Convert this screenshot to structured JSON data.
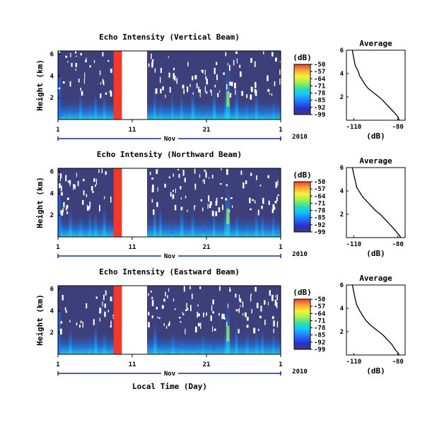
{
  "figure": {
    "xlabel": "Local Time (Day)",
    "month_label": "Nov",
    "year_label": "2010"
  },
  "chart_data": [
    {
      "type": "heatmap",
      "title": "Echo Intensity (Vertical Beam)",
      "ylabel": "Height (km)",
      "x_ticks": [
        "1",
        "11",
        "21",
        "1"
      ],
      "y_ticks": [
        "6",
        "4",
        "2"
      ],
      "colorbar": {
        "label": "(dB)",
        "ticks": [
          -50,
          -57,
          -64,
          -71,
          -78,
          -85,
          -92,
          -99
        ],
        "range": [
          -99,
          -50
        ]
      },
      "data_gap_days": [
        8.6,
        12.0
      ],
      "red_band_days": [
        7.5,
        8.6
      ],
      "profile": {
        "title": "Average",
        "xlabel": "(dB)",
        "x_ticks": [
          "-110",
          "-80"
        ],
        "y_ticks": [
          "6",
          "4",
          "2"
        ],
        "xlim": [
          -115,
          -75
        ],
        "ylim": [
          0,
          6
        ],
        "x": [
          -111,
          -110,
          -109,
          -107,
          -106,
          -104,
          -102,
          -100,
          -97,
          -94,
          -91,
          -88,
          -85,
          -82,
          -80,
          -79
        ],
        "y": [
          6.0,
          5.3,
          4.7,
          4.2,
          3.8,
          3.4,
          3.0,
          2.7,
          2.4,
          2.1,
          1.8,
          1.4,
          1.0,
          0.6,
          0.3,
          0.0
        ]
      }
    },
    {
      "type": "heatmap",
      "title": "Echo Intensity (Northward Beam)",
      "ylabel": "Height (km)",
      "x_ticks": [
        "1",
        "11",
        "21",
        "1"
      ],
      "y_ticks": [
        "6",
        "4",
        "2"
      ],
      "colorbar": {
        "label": "(dB)",
        "ticks": [
          -50,
          -57,
          -64,
          -71,
          -78,
          -85,
          -92,
          -99
        ],
        "range": [
          -99,
          -50
        ]
      },
      "data_gap_days": [
        8.6,
        12.0
      ],
      "red_band_days": [
        7.5,
        8.6
      ],
      "profile": {
        "title": "Average",
        "xlabel": "(dB)",
        "x_ticks": [
          "-110",
          "-80"
        ],
        "y_ticks": [
          "6",
          "4",
          "2"
        ],
        "xlim": [
          -115,
          -75
        ],
        "ylim": [
          0,
          6
        ],
        "x": [
          -111,
          -110,
          -109,
          -108,
          -106,
          -104,
          -101,
          -98,
          -95,
          -92,
          -89,
          -86,
          -83,
          -81,
          -79,
          -78
        ],
        "y": [
          6.0,
          5.4,
          4.9,
          4.3,
          3.9,
          3.5,
          3.1,
          2.7,
          2.3,
          2.0,
          1.6,
          1.2,
          0.8,
          0.5,
          0.2,
          0.0
        ]
      }
    },
    {
      "type": "heatmap",
      "title": "Echo Intensity (Eastward Beam)",
      "ylabel": "Height (km)",
      "x_ticks": [
        "1",
        "11",
        "21",
        "1"
      ],
      "y_ticks": [
        "6",
        "4",
        "2"
      ],
      "colorbar": {
        "label": "(dB)",
        "ticks": [
          -50,
          -57,
          -64,
          -71,
          -78,
          -85,
          -92,
          -99
        ],
        "range": [
          -99,
          -50
        ]
      },
      "data_gap_days": [
        8.6,
        12.0
      ],
      "red_band_days": [
        7.5,
        8.6
      ],
      "profile": {
        "title": "Average",
        "xlabel": "(dB)",
        "x_ticks": [
          "-110",
          "-80"
        ],
        "y_ticks": [
          "6",
          "4",
          "2"
        ],
        "xlim": [
          -115,
          -75
        ],
        "ylim": [
          0,
          6
        ],
        "x": [
          -111,
          -110,
          -109,
          -108,
          -106,
          -104,
          -102,
          -99,
          -96,
          -93,
          -90,
          -87,
          -84,
          -82,
          -80,
          -79
        ],
        "y": [
          6.0,
          5.4,
          4.8,
          4.3,
          3.8,
          3.4,
          3.0,
          2.6,
          2.3,
          2.0,
          1.7,
          1.3,
          0.9,
          0.5,
          0.2,
          0.0
        ]
      }
    }
  ]
}
